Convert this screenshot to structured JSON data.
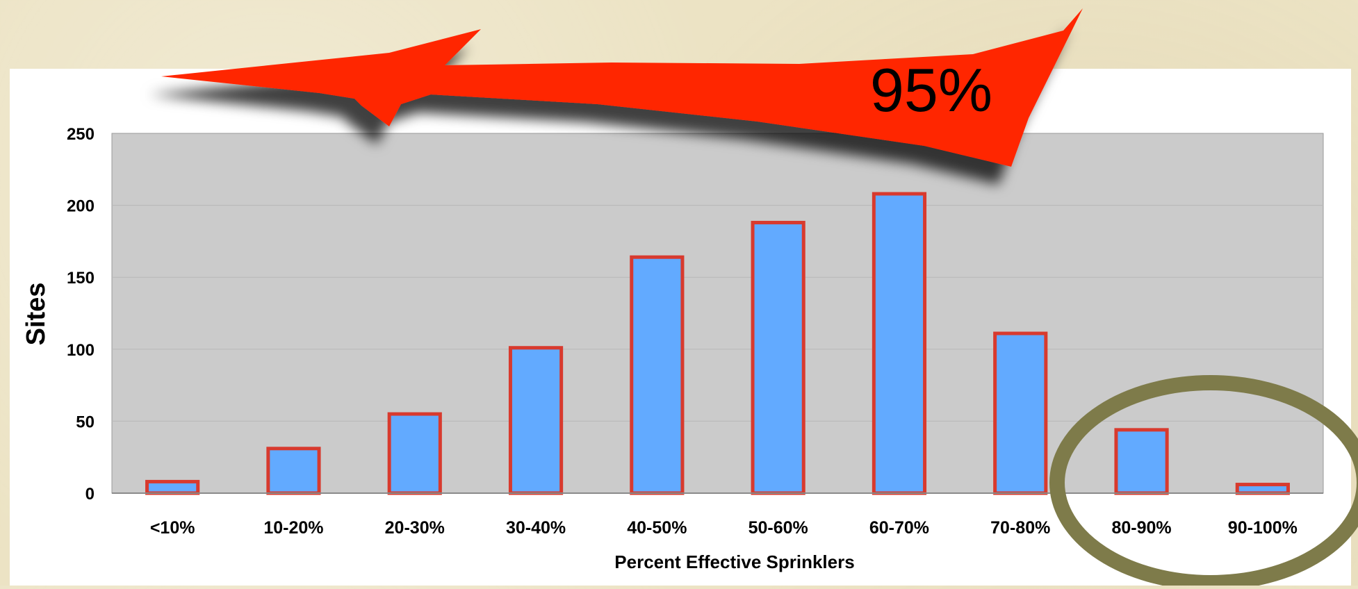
{
  "chart_data": {
    "type": "bar",
    "categories": [
      "<10%",
      "10-20%",
      "20-30%",
      "30-40%",
      "40-50%",
      "50-60%",
      "60-70%",
      "70-80%",
      "80-90%",
      "90-100%"
    ],
    "values": [
      8,
      31,
      55,
      101,
      164,
      188,
      208,
      111,
      44,
      6
    ],
    "xlabel": "Percent Effective Sprinklers",
    "ylabel": "Sites",
    "ylim": [
      0,
      250
    ],
    "yticks": [
      0,
      50,
      100,
      150,
      200,
      250
    ],
    "grid": true,
    "colors": {
      "bar_fill": "#62aaff",
      "bar_stroke": "#d83a2e",
      "plot_bg": "#cbcbcb",
      "grid": "#b8b8b8"
    }
  },
  "annotations": {
    "arrow_label": "95%",
    "arrow_color": "#ff2600",
    "highlight_ring_color": "#7e7b4a",
    "highlighted_categories": [
      "80-90%",
      "90-100%"
    ]
  }
}
